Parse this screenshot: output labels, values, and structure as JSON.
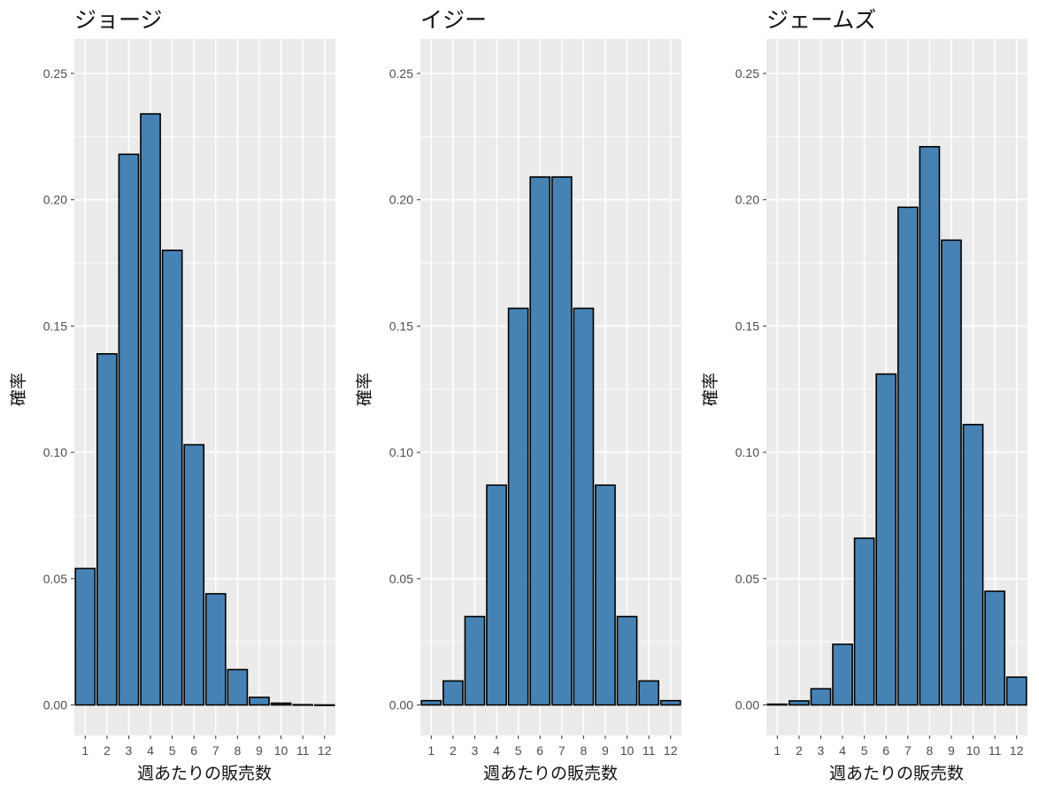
{
  "chart_data": [
    {
      "type": "bar",
      "title": "ジョージ",
      "xlabel": "週あたりの販売数",
      "ylabel": "確率",
      "categories": [
        "1",
        "2",
        "3",
        "4",
        "5",
        "6",
        "7",
        "8",
        "9",
        "10",
        "11",
        "12"
      ],
      "values": [
        0.054,
        0.139,
        0.218,
        0.234,
        0.18,
        0.103,
        0.044,
        0.014,
        0.003,
        0.0007,
        0.0001,
        0.0
      ],
      "ylim": [
        0,
        0.25
      ],
      "yticks": [
        "0.00",
        "0.05",
        "0.10",
        "0.15",
        "0.20",
        "0.25"
      ],
      "grid": true,
      "bar_color": "#4682B4",
      "edge_color": "#000000",
      "panel_background": "#EBEBEB"
    },
    {
      "type": "bar",
      "title": "イジー",
      "xlabel": "週あたりの販売数",
      "ylabel": "確率",
      "categories": [
        "1",
        "2",
        "3",
        "4",
        "5",
        "6",
        "7",
        "8",
        "9",
        "10",
        "11",
        "12"
      ],
      "values": [
        0.0017,
        0.0095,
        0.035,
        0.087,
        0.157,
        0.209,
        0.209,
        0.157,
        0.087,
        0.035,
        0.0095,
        0.0017
      ],
      "ylim": [
        0,
        0.25
      ],
      "yticks": [
        "0.00",
        "0.05",
        "0.10",
        "0.15",
        "0.20",
        "0.25"
      ],
      "grid": true,
      "bar_color": "#4682B4",
      "edge_color": "#000000",
      "panel_background": "#EBEBEB"
    },
    {
      "type": "bar",
      "title": "ジェームズ",
      "xlabel": "週あたりの販売数",
      "ylabel": "確率",
      "categories": [
        "1",
        "2",
        "3",
        "4",
        "5",
        "6",
        "7",
        "8",
        "9",
        "10",
        "11",
        "12"
      ],
      "values": [
        0.0003,
        0.0016,
        0.0064,
        0.024,
        0.066,
        0.131,
        0.197,
        0.221,
        0.184,
        0.111,
        0.045,
        0.011
      ],
      "ylim": [
        0,
        0.25
      ],
      "yticks": [
        "0.00",
        "0.05",
        "0.10",
        "0.15",
        "0.20",
        "0.25"
      ],
      "grid": true,
      "bar_color": "#4682B4",
      "edge_color": "#000000",
      "panel_background": "#EBEBEB"
    }
  ]
}
